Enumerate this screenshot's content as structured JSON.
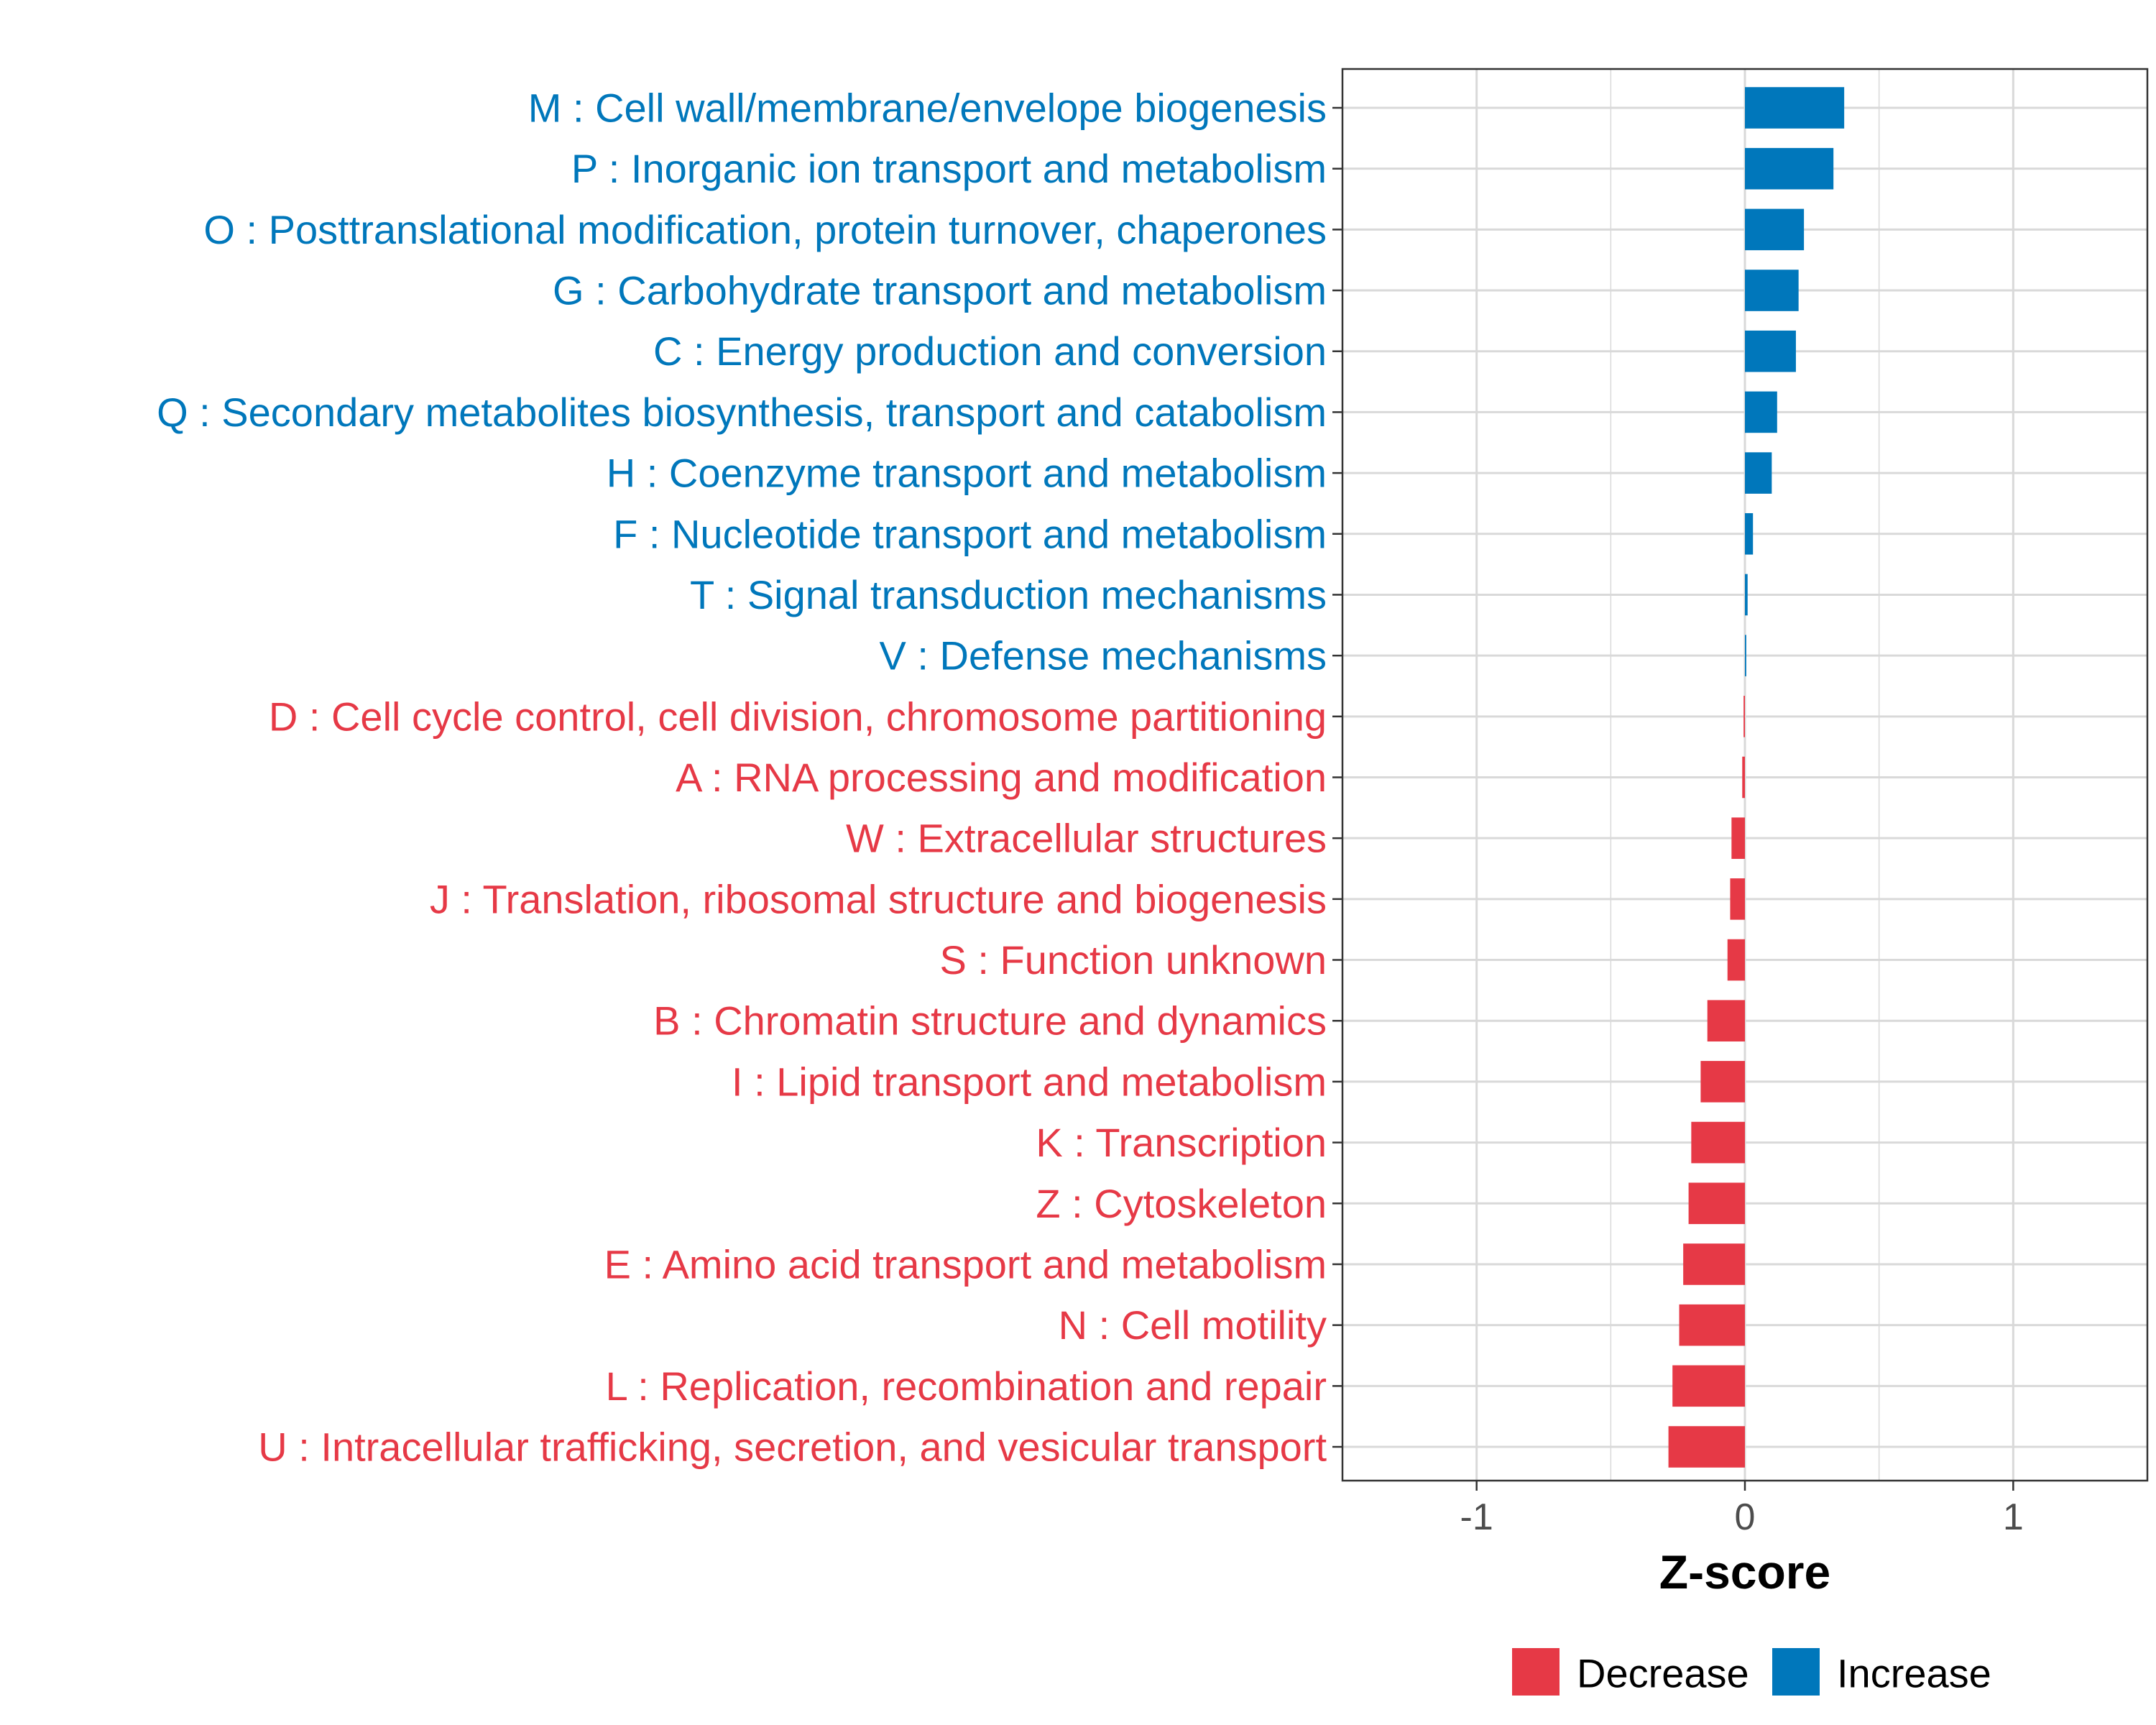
{
  "chart_data": {
    "type": "bar",
    "orientation": "horizontal",
    "title": "",
    "xlabel": "Z-score",
    "ylabel": "",
    "xlim": [
      -1.5,
      1.5
    ],
    "xticks": [
      -1,
      0,
      1
    ],
    "xtick_labels": [
      "-1",
      "0",
      "1"
    ],
    "grid": true,
    "legend_position": "bottom",
    "colors": {
      "Decrease": "#e63946",
      "Increase": "#0077bb"
    },
    "legend": [
      {
        "label": "Decrease",
        "color": "#e63946"
      },
      {
        "label": "Increase",
        "color": "#0077bb"
      }
    ],
    "categories": [
      "M : Cell wall/membrane/envelope biogenesis",
      "P : Inorganic ion transport and metabolism",
      "O : Posttranslational modification, protein turnover, chaperones",
      "G : Carbohydrate transport and metabolism",
      "C : Energy production and conversion",
      "Q : Secondary metabolites biosynthesis, transport and catabolism",
      "H : Coenzyme transport and metabolism",
      "F : Nucleotide transport and metabolism",
      "T : Signal transduction mechanisms",
      "V : Defense mechanisms",
      "D : Cell cycle control, cell division, chromosome partitioning",
      "A : RNA processing and modification",
      "W : Extracellular structures",
      "J : Translation, ribosomal structure and biogenesis",
      "S : Function unknown",
      "B : Chromatin structure and dynamics",
      "I : Lipid transport and metabolism",
      "K : Transcription",
      "Z : Cytoskeleton",
      "E : Amino acid transport and metabolism",
      "N : Cell motility",
      "L : Replication, recombination and repair",
      "U : Intracellular trafficking, secretion, and vesicular transport"
    ],
    "values": [
      0.37,
      0.33,
      0.22,
      0.2,
      0.19,
      0.12,
      0.1,
      0.03,
      0.01,
      0.005,
      -0.005,
      -0.01,
      -0.05,
      -0.055,
      -0.065,
      -0.14,
      -0.165,
      -0.2,
      -0.21,
      -0.23,
      -0.245,
      -0.27,
      -0.285
    ],
    "groups": [
      "Increase",
      "Increase",
      "Increase",
      "Increase",
      "Increase",
      "Increase",
      "Increase",
      "Increase",
      "Increase",
      "Increase",
      "Decrease",
      "Decrease",
      "Decrease",
      "Decrease",
      "Decrease",
      "Decrease",
      "Decrease",
      "Decrease",
      "Decrease",
      "Decrease",
      "Decrease",
      "Decrease",
      "Decrease"
    ]
  }
}
